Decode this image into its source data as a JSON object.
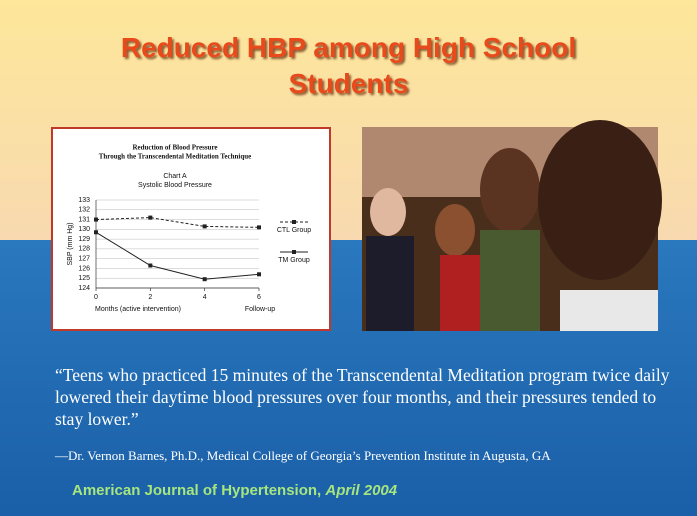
{
  "slide": {
    "title": "Reduced HBP among High School Students",
    "quote": "“Teens who practiced 15 minutes of the Transcendental Meditation program twice daily lowered their daytime blood pressures over four months, and their pressures tended to stay lower.”",
    "attribution": "—Dr. Vernon Barnes, Ph.D., Medical College of Georgia’s Prevention Institute in Augusta, GA",
    "journal": "American Journal of Hypertension,",
    "journal_date": "April 2004"
  },
  "chart_data": {
    "type": "line",
    "title": [
      "Reduction of Blood Pressure",
      "Through the Transcendental Meditation Technique"
    ],
    "subtitle": [
      "Chart A",
      "Systolic Blood Pressure"
    ],
    "y_label": "SBP (mm Hg)",
    "x_label": "Months (active intervention)",
    "x_label_followup": "Follow-up",
    "x": [
      0,
      2,
      4,
      6
    ],
    "xlim": [
      0,
      6
    ],
    "xticks": [
      0,
      2,
      4,
      6
    ],
    "ylim": [
      124,
      133
    ],
    "yticks": [
      124,
      125,
      126,
      127,
      128,
      129,
      130,
      131,
      132,
      133
    ],
    "grid": true,
    "legend": "right",
    "series": [
      {
        "name": "CTL Group",
        "color": "#222222",
        "dashed": true,
        "values": [
          131,
          131.2,
          130.3,
          130.2
        ]
      },
      {
        "name": "TM Group",
        "color": "#222222",
        "dashed": false,
        "values": [
          129.7,
          126.3,
          124.9,
          125.4
        ]
      }
    ]
  }
}
